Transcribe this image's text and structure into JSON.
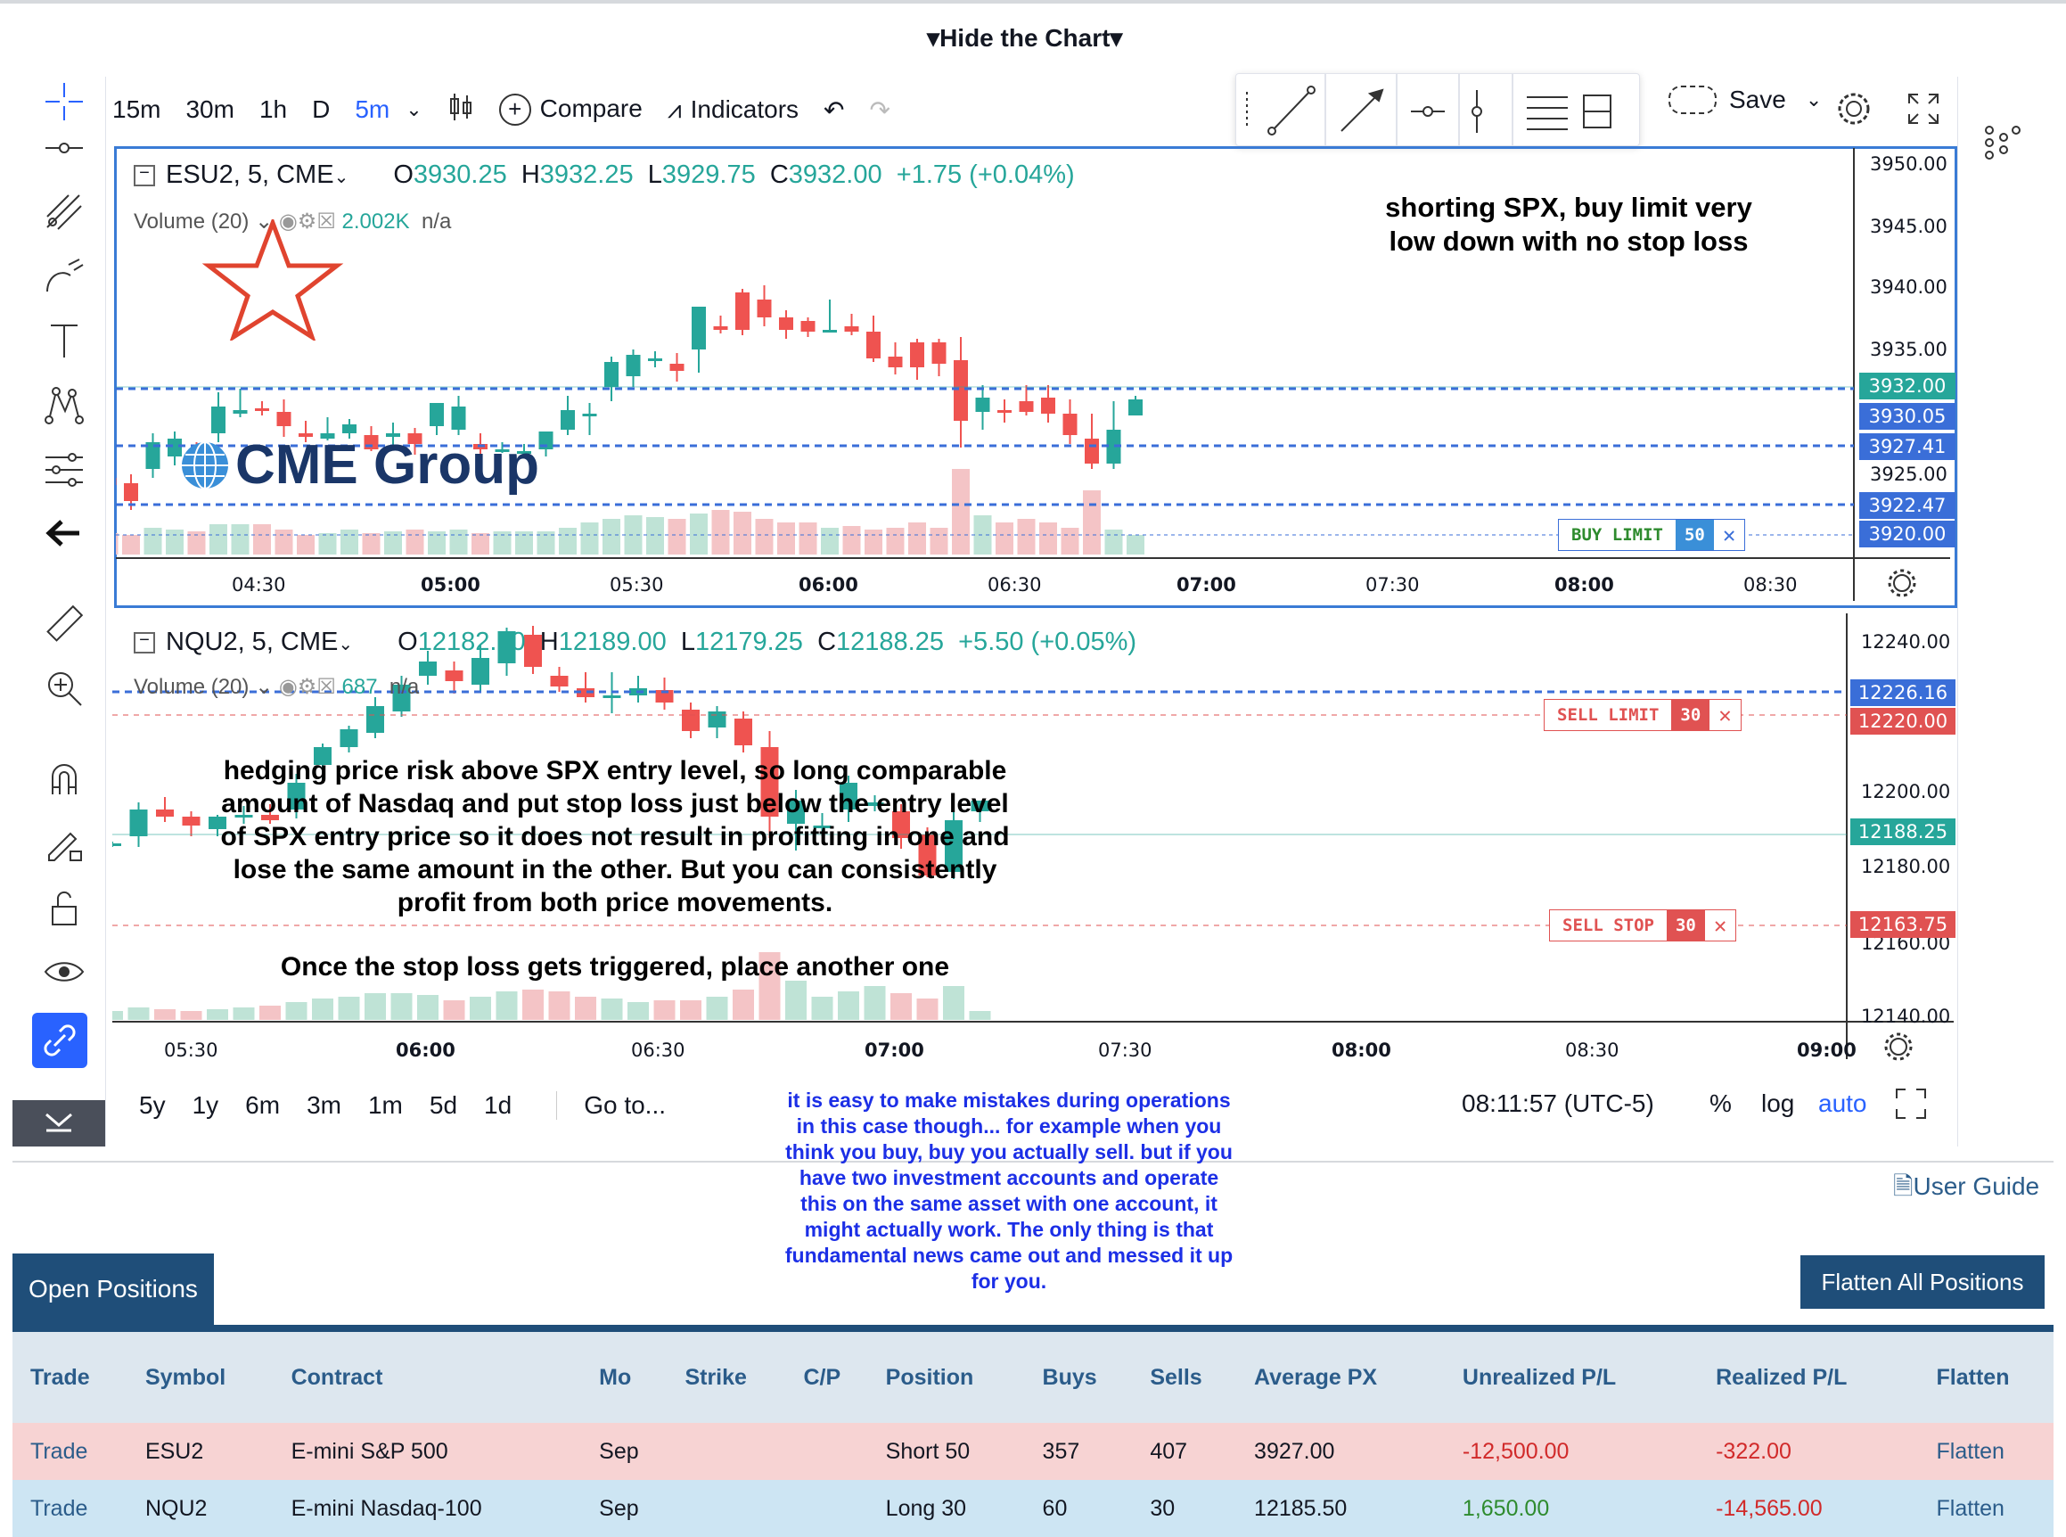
{
  "header": {
    "hide_chart": "Hide the Chart"
  },
  "toolbar": {
    "intervals": [
      "15m",
      "30m",
      "1h",
      "D",
      "5m"
    ],
    "compare": "Compare",
    "indicators": "Indicators",
    "save": "Save"
  },
  "chart1": {
    "symbol": "ESU2, 5, CME",
    "o_label": "O",
    "o": "3930.25",
    "h_label": "H",
    "h": "3932.25",
    "l_label": "L",
    "l": "3929.75",
    "c_label": "C",
    "c": "3932.00",
    "change": "+1.75 (+0.04%)",
    "volume_label": "Volume (20)",
    "volume_value": "2.002K",
    "volume_na": "n/a",
    "logo": "CME Group",
    "y_ticks": [
      "3950.00",
      "3945.00",
      "3940.00",
      "3935.00",
      "3925.00"
    ],
    "price_tags": [
      {
        "label": "3932.00",
        "color": "#26a69a"
      },
      {
        "label": "3930.05",
        "color": "#3a6ed8"
      },
      {
        "label": "3927.41",
        "color": "#3a6ed8"
      },
      {
        "label": "3922.47",
        "color": "#3a6ed8"
      },
      {
        "label": "3920.00",
        "color": "#3a6ed8"
      }
    ],
    "x_ticks": [
      "04:30",
      "05:00",
      "05:30",
      "06:00",
      "06:30",
      "07:00",
      "07:30",
      "08:00",
      "08:30"
    ],
    "order": {
      "label": "BUY LIMIT",
      "qty": "50"
    }
  },
  "chart2": {
    "symbol": "NQU2, 5, CME",
    "o_label": "O",
    "o": "12182.50",
    "h_label": "H",
    "h": "12189.00",
    "l_label": "L",
    "l": "12179.25",
    "c_label": "C",
    "c": "12188.25",
    "change": "+5.50 (+0.05%)",
    "volume_label": "Volume (20)",
    "volume_value": "687",
    "volume_na": "n/a",
    "y_ticks": [
      "12240.00",
      "12200.00",
      "12180.00",
      "12160.00",
      "12140.00"
    ],
    "price_tags": [
      {
        "label": "12226.16",
        "color": "#3a6ed8"
      },
      {
        "label": "12220.00",
        "color": "#e05252"
      },
      {
        "label": "12188.25",
        "color": "#26a69a"
      },
      {
        "label": "12163.75",
        "color": "#e05252"
      }
    ],
    "x_ticks": [
      "05:30",
      "06:00",
      "06:30",
      "07:00",
      "07:30",
      "08:00",
      "08:30",
      "09:00"
    ],
    "orders": [
      {
        "label": "SELL LIMIT",
        "qty": "30"
      },
      {
        "label": "SELL STOP",
        "qty": "30"
      }
    ]
  },
  "bottom_bar": {
    "ranges": [
      "5y",
      "1y",
      "6m",
      "3m",
      "1m",
      "5d",
      "1d"
    ],
    "goto": "Go to...",
    "time": "08:11:57 (UTC-5)",
    "percent": "%",
    "log": "log",
    "auto": "auto"
  },
  "notes": {
    "short_line1": "shorting SPX, buy limit very",
    "short_line2": "low down with no stop loss",
    "hedge_lines": [
      "hedging price risk above SPX entry level, so long comparable",
      "amount of Nasdaq and put stop loss just below the entry level",
      "of SPX entry price so it does not result in profitting in one and",
      "lose the same amount in the other. But you can consistently",
      "profit from both price movements."
    ],
    "stop_note": "Once the stop loss gets triggered, place another one",
    "blue_lines": [
      "it is easy to make mistakes during operations",
      "in this case though... for example when you",
      "think you buy, buy you actually sell. but if you",
      "have two investment accounts and operate",
      "this on the same asset with one account, it",
      "might actually work. The only thing is that",
      "fundamental news came out and messed it up",
      "for you."
    ]
  },
  "user_guide": "User Guide",
  "tab_open_positions": "Open Positions",
  "flatten_all": "Flatten All Positions",
  "positions": {
    "headers": [
      "Trade",
      "Symbol",
      "Contract",
      "Mo",
      "Strike",
      "C/P",
      "Position",
      "Buys",
      "Sells",
      "Average PX",
      "Unrealized P/L",
      "Realized P/L",
      "Flatten"
    ],
    "rows": [
      [
        "Trade",
        "ESU2",
        "E-mini S&P 500",
        "Sep",
        "",
        "",
        "Short 50",
        "357",
        "407",
        "3927.00",
        "-12,500.00",
        "-322.00",
        "Flatten"
      ],
      [
        "Trade",
        "NQU2",
        "E-mini Nasdaq-100",
        "Sep",
        "",
        "",
        "Long 30",
        "60",
        "30",
        "12185.50",
        "1,650.00",
        "-14,565.00",
        "Flatten"
      ]
    ]
  },
  "colors": {
    "up": "#26a69a",
    "down": "#ef5350",
    "accent": "#2962ff",
    "navy": "#1f4e79"
  }
}
